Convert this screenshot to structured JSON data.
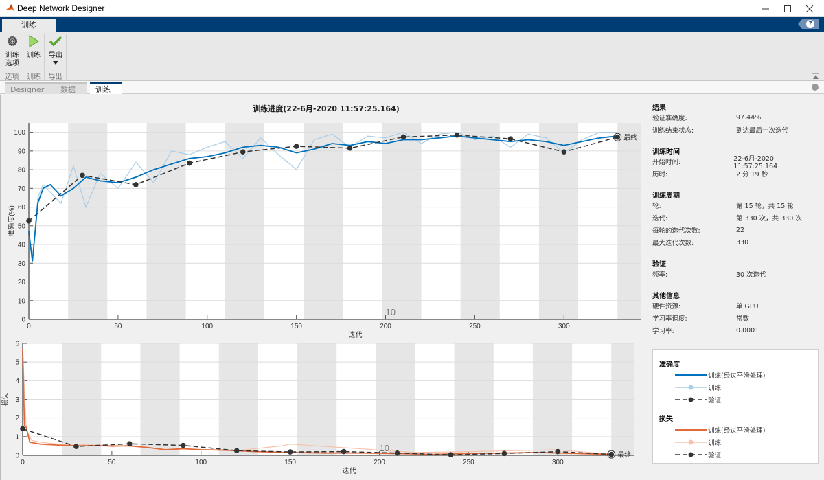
{
  "window": {
    "title": "Deep Network Designer",
    "controls": [
      "minimize",
      "maximize",
      "close"
    ]
  },
  "ribbon": {
    "tabs": [
      {
        "label": "训练"
      }
    ],
    "help_label": "?",
    "groups": [
      {
        "label": "选项",
        "buttons": [
          {
            "label": "训练\n选项",
            "line1": "训练",
            "line2": "选项",
            "icon": "gear-icon"
          }
        ]
      },
      {
        "label": "训练",
        "buttons": [
          {
            "label": "训练",
            "icon": "play-icon"
          }
        ]
      },
      {
        "label": "导出",
        "buttons": [
          {
            "label": "导出",
            "icon": "checkmark-icon",
            "has_dropdown": true
          }
        ]
      }
    ]
  },
  "doc_tabs": [
    {
      "label": "Designer",
      "active": false
    },
    {
      "label": "数据",
      "active": false
    },
    {
      "label": "训练",
      "active": true
    }
  ],
  "plot_title": "训练进度(22-6月-2020 11:57:25.164)",
  "info_panel": {
    "sections": [
      {
        "title": "结果",
        "rows": [
          {
            "key": "验证准确度:",
            "value": "97.44%"
          },
          {
            "key": "训练结束状态:",
            "value": "到达最后一次迭代"
          }
        ]
      },
      {
        "title": "训练时间",
        "rows": [
          {
            "key": "开始时间:",
            "value": "22-6月-2020 11:57:25.164"
          },
          {
            "key": "历时:",
            "value": "2 分 19 秒"
          }
        ]
      },
      {
        "title": "训练周期",
        "rows": [
          {
            "key": "轮:",
            "value": "第 15 轮，共 15 轮"
          },
          {
            "key": "迭代:",
            "value": "第 330 次，共 330 次"
          },
          {
            "key": "每轮的迭代次数:",
            "value": "22"
          },
          {
            "key": "最大迭代次数:",
            "value": "330"
          }
        ]
      },
      {
        "title": "验证",
        "rows": [
          {
            "key": "频率:",
            "value": "30 次迭代"
          }
        ]
      },
      {
        "title": "其他信息",
        "rows": [
          {
            "key": "硬件资源:",
            "value": "单 GPU"
          },
          {
            "key": "学习率调度:",
            "value": "常数"
          },
          {
            "key": "学习率:",
            "value": "0.0001"
          }
        ]
      }
    ]
  },
  "legend": {
    "accuracy_title": "准确度",
    "loss_title": "损失",
    "accuracy_items": [
      "训练(经过平滑处理)",
      "训练",
      "验证"
    ],
    "loss_items": [
      "训练(经过平滑处理)",
      "训练",
      "验证"
    ]
  },
  "colors": {
    "accent_blue": "#003d75",
    "acc_smoothed": "#0072bd",
    "acc_raw": "#a9cde8",
    "loss_smoothed": "#e2693a",
    "loss_raw": "#f5c2ae",
    "validation": "#333333",
    "epoch_shade": "#e6e6e6"
  },
  "chart_data": [
    {
      "type": "line",
      "title": "训练进度(22-6月-2020 11:57:25.164)",
      "xlabel": "迭代",
      "ylabel": "准确度(%)",
      "xlim": [
        0,
        343
      ],
      "ylim": [
        0,
        105
      ],
      "xticks": [
        0,
        50,
        100,
        150,
        200,
        250,
        300
      ],
      "yticks": [
        0,
        10,
        20,
        30,
        40,
        50,
        60,
        70,
        80,
        90,
        100
      ],
      "grid": true,
      "epoch_marker_label": "10",
      "epoch_marker_x": 200,
      "final_label": "最终",
      "epoch_boundaries": [
        22,
        44,
        66,
        88,
        110,
        132,
        154,
        176,
        198,
        220,
        242,
        264,
        286,
        308,
        330
      ],
      "series": [
        {
          "name": "训练(经过平滑处理)",
          "x": [
            0,
            2,
            5,
            8,
            12,
            18,
            25,
            32,
            40,
            50,
            60,
            70,
            80,
            90,
            100,
            110,
            120,
            130,
            140,
            150,
            160,
            170,
            180,
            190,
            200,
            210,
            220,
            230,
            240,
            250,
            260,
            270,
            280,
            290,
            300,
            310,
            320,
            330
          ],
          "values": [
            47,
            31,
            62,
            70,
            72,
            66,
            70,
            76,
            74,
            73,
            76,
            80,
            83,
            86,
            87,
            89,
            92,
            93,
            92,
            89,
            91,
            94,
            93,
            95,
            94,
            96,
            96,
            97,
            98,
            97,
            96,
            95,
            96,
            95,
            93,
            95,
            97,
            98
          ]
        },
        {
          "name": "训练",
          "x": [
            0,
            2,
            5,
            8,
            12,
            18,
            25,
            32,
            40,
            50,
            60,
            70,
            80,
            90,
            100,
            110,
            120,
            130,
            140,
            150,
            160,
            170,
            180,
            190,
            200,
            210,
            220,
            230,
            240,
            250,
            260,
            270,
            280,
            290,
            300,
            310,
            320,
            330
          ],
          "values": [
            47,
            31,
            65,
            72,
            68,
            62,
            82,
            60,
            78,
            70,
            84,
            73,
            90,
            88,
            92,
            95,
            86,
            97,
            88,
            80,
            96,
            99,
            92,
            98,
            97,
            100,
            94,
            99,
            100,
            96,
            98,
            92,
            99,
            97,
            89,
            96,
            100,
            100
          ]
        },
        {
          "name": "验证",
          "x": [
            0,
            30,
            60,
            90,
            120,
            150,
            180,
            210,
            240,
            270,
            300,
            330
          ],
          "values": [
            52.6,
            77,
            72,
            83.5,
            89.5,
            92.5,
            91.5,
            97.5,
            98.5,
            96.5,
            89.5,
            97.4
          ]
        }
      ]
    },
    {
      "type": "line",
      "xlabel": "迭代",
      "ylabel": "损失",
      "xlim": [
        0,
        343
      ],
      "ylim": [
        0,
        6
      ],
      "xticks": [
        0,
        50,
        100,
        150,
        200,
        250,
        300
      ],
      "yticks": [
        0,
        1,
        2,
        3,
        4,
        5,
        6
      ],
      "grid": true,
      "epoch_marker_label": "10",
      "epoch_marker_x": 200,
      "final_label": "最终",
      "series": [
        {
          "name": "训练(经过平滑处理)",
          "x": [
            0,
            1,
            2,
            4,
            10,
            20,
            30,
            40,
            50,
            60,
            70,
            80,
            90,
            100,
            110,
            120,
            130,
            150,
            170,
            190,
            210,
            230,
            250,
            270,
            290,
            310,
            330
          ],
          "values": [
            5.7,
            1.6,
            1.5,
            0.7,
            0.6,
            0.55,
            0.5,
            0.52,
            0.5,
            0.5,
            0.42,
            0.3,
            0.35,
            0.3,
            0.28,
            0.25,
            0.2,
            0.15,
            0.12,
            0.12,
            0.1,
            0.05,
            0.1,
            0.12,
            0.15,
            0.1,
            0.05
          ]
        },
        {
          "name": "训练",
          "x": [
            0,
            2,
            5,
            10,
            20,
            30,
            40,
            50,
            60,
            70,
            80,
            90,
            100,
            120,
            145,
            150,
            220,
            250,
            300,
            330
          ],
          "values": [
            5.7,
            1.4,
            0.8,
            0.7,
            0.6,
            0.55,
            0.6,
            0.45,
            0.55,
            0.4,
            0.3,
            0.35,
            0.3,
            0.25,
            0.5,
            0.6,
            0.15,
            0.2,
            0.3,
            0.05
          ]
        },
        {
          "name": "验证",
          "x": [
            0,
            30,
            60,
            90,
            120,
            150,
            180,
            210,
            240,
            270,
            300,
            330
          ],
          "values": [
            1.42,
            0.47,
            0.62,
            0.53,
            0.25,
            0.18,
            0.2,
            0.12,
            0.03,
            0.1,
            0.2,
            0.05
          ]
        }
      ]
    }
  ]
}
